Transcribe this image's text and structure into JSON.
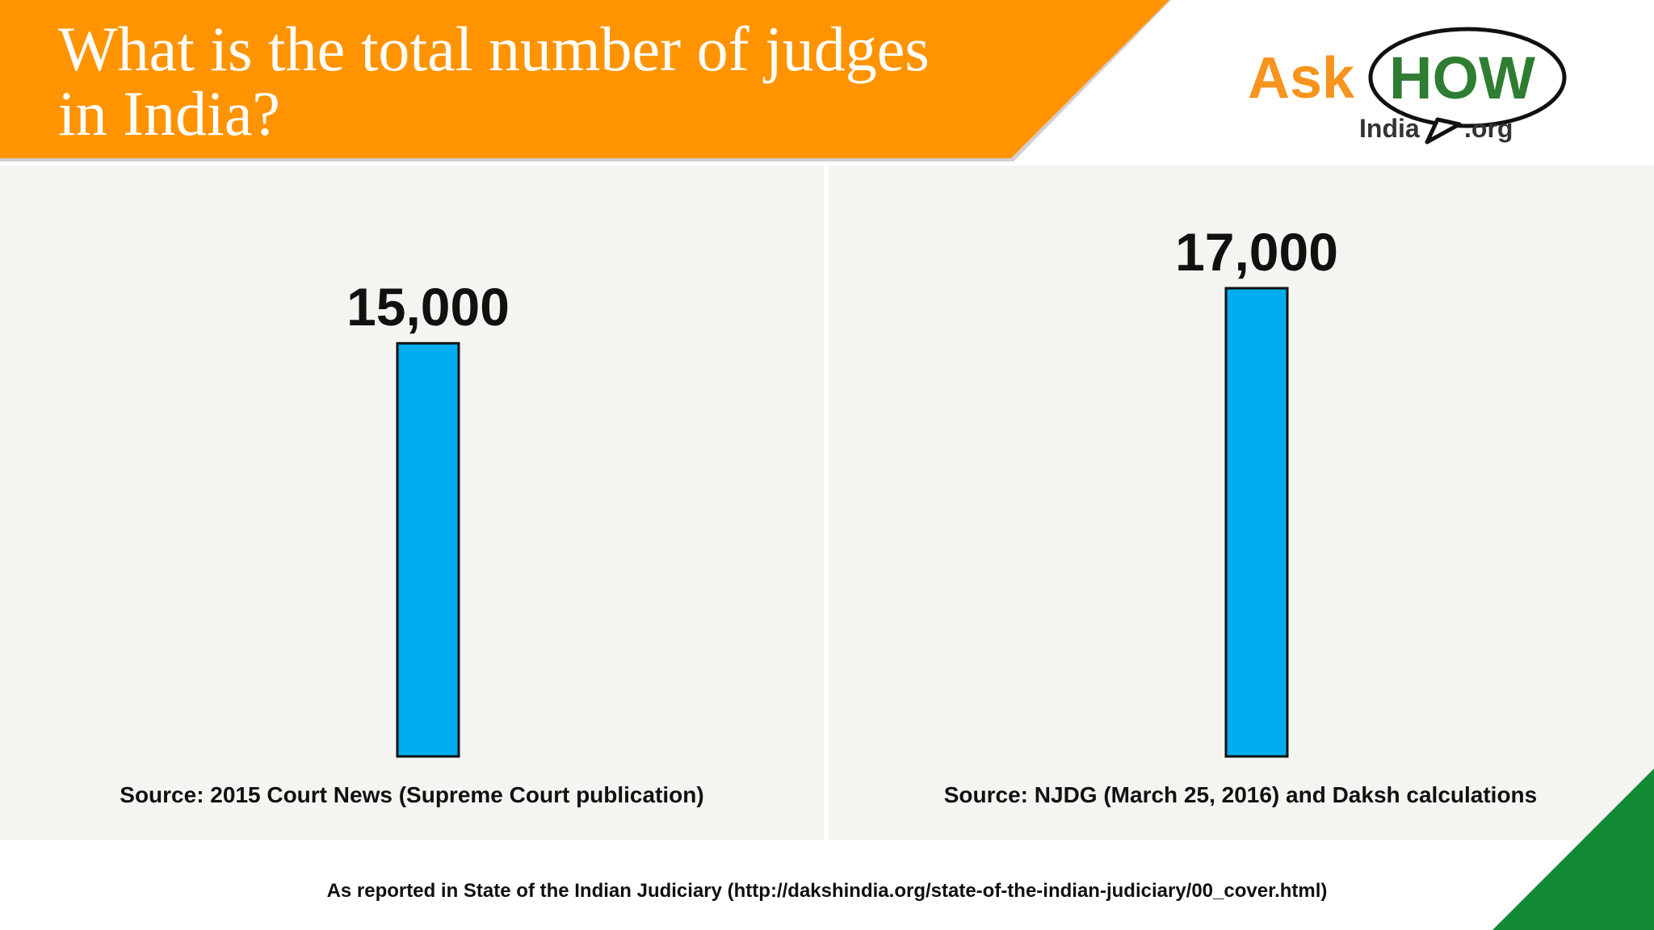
{
  "header": {
    "title_line_1": "What is the total number of judges",
    "title_line_2": "in India?",
    "banner_color": "#ff9400"
  },
  "logo": {
    "word_ask": "Ask",
    "word_how": "HOW",
    "word_india": "India",
    "word_org": ".org",
    "ask_color": "#f7941d",
    "how_color": "#2e7d32"
  },
  "chart_data": [
    {
      "type": "bar",
      "categories": [
        ""
      ],
      "values": [
        15000
      ],
      "data_labels": [
        "15,000"
      ],
      "ylim": [
        0,
        17000
      ],
      "grid": false,
      "bar_color": "#00adef",
      "source": "Source: 2015 Court News (Supreme Court publication)"
    },
    {
      "type": "bar",
      "categories": [
        ""
      ],
      "values": [
        17000
      ],
      "data_labels": [
        "17,000"
      ],
      "ylim": [
        0,
        17000
      ],
      "grid": false,
      "bar_color": "#00adef",
      "source": "Source: NJDG (March 25, 2016) and Daksh calculations"
    }
  ],
  "footer": {
    "note": "As reported in State of the Indian Judiciary (http://dakshindia.org/state-of-the-indian-judiciary/00_cover.html)",
    "corner_color": "#138a36"
  }
}
